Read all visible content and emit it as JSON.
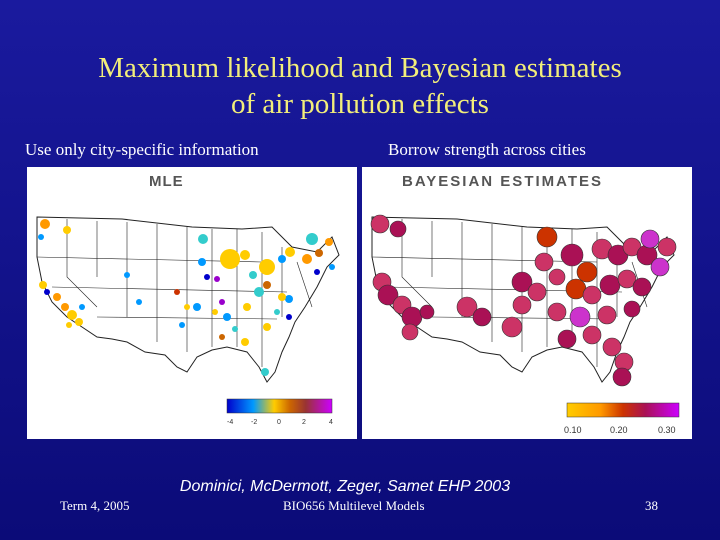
{
  "slide": {
    "title_line1": "Maximum likelihood and Bayesian estimates",
    "title_line2": "of air pollution effects",
    "left_subtitle": "Use only city-specific information",
    "right_subtitle": "Borrow strength across cities",
    "citation": "Dominici, McDermott, Zeger, Samet EHP 2003",
    "footer_left": "Term 4, 2005",
    "footer_center": "BIO656 Multilevel Models",
    "footer_right": "38"
  },
  "left_map": {
    "label": "MLE",
    "colorbar_ticks": [
      "-4",
      "-2",
      "0",
      "2",
      "4"
    ],
    "colors": [
      "#0000cc",
      "#0099ff",
      "#33cccc",
      "#ffcc00",
      "#ff9900",
      "#cc6600",
      "#993300",
      "#cc33cc",
      "#9900cc"
    ]
  },
  "right_map": {
    "label": "BAYESIAN ESTIMATES",
    "colorbar_ticks": [
      "0.10",
      "0.20",
      "0.30"
    ],
    "colors": [
      "#ffcc00",
      "#ff9900",
      "#cc3300",
      "#aa1155",
      "#cc3366",
      "#cc33cc",
      "#9900ff"
    ]
  }
}
